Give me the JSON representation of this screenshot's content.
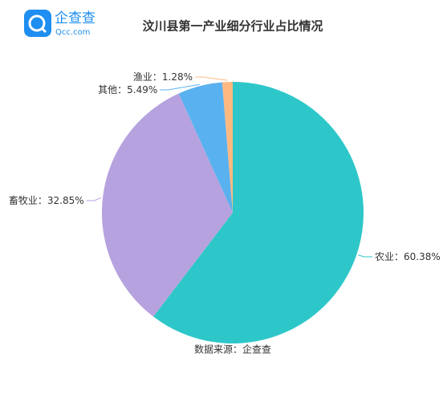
{
  "logo": {
    "name": "企查查",
    "url": "Qcc.com"
  },
  "chart_data": {
    "type": "pie",
    "title": "汶川县第一产业细分行业占比情况",
    "categories": [
      "农业",
      "畜牧业",
      "其他",
      "渔业"
    ],
    "values": [
      60.38,
      32.85,
      5.49,
      1.28
    ],
    "value_labels": [
      "60.38%",
      "32.85%",
      "5.49%",
      "1.28%"
    ],
    "label_separator": "：",
    "colors": [
      "#2ec7c9",
      "#b6a2de",
      "#5ab1ef",
      "#ffb980"
    ],
    "source": "数据来源：企查查"
  }
}
